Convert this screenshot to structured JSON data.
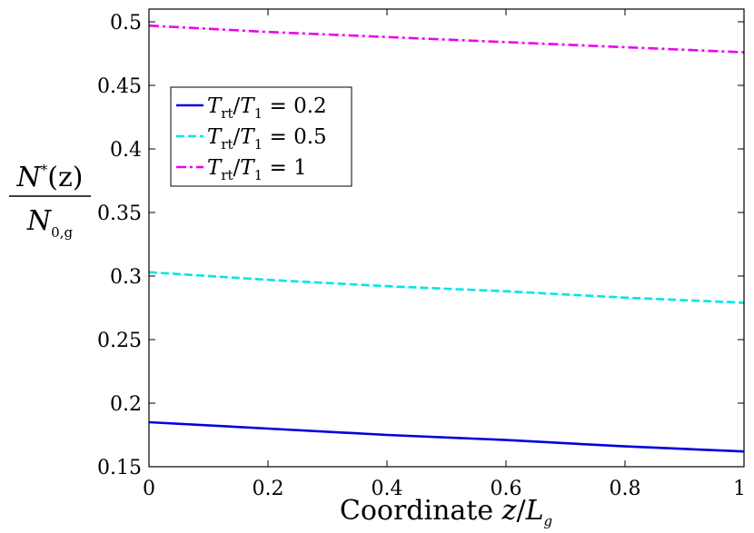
{
  "chart_data": {
    "type": "line",
    "title": "",
    "xlabel": {
      "prefix": "Coordinate ",
      "var": "z",
      "slash": "/",
      "sym": "L",
      "sub": "g"
    },
    "ylabel": {
      "num_sym": "N",
      "num_sup": "*",
      "num_arg": "(z)",
      "den_sym": "N",
      "den_sub": "0,g"
    },
    "xlim": [
      0,
      1
    ],
    "ylim": [
      0.15,
      0.51
    ],
    "xticks": [
      0,
      0.2,
      0.4,
      0.6,
      0.8,
      1
    ],
    "xtick_labels": [
      "0",
      "0.2",
      "0.4",
      "0.6",
      "0.8",
      "1"
    ],
    "yticks": [
      0.15,
      0.2,
      0.25,
      0.3,
      0.35,
      0.4,
      0.45,
      0.5
    ],
    "ytick_labels": [
      "0.15",
      "0.2",
      "0.25",
      "0.3",
      "0.35",
      "0.4",
      "0.45",
      "0.5"
    ],
    "grid": false,
    "legend_position": "upper-left",
    "series": [
      {
        "legend": {
          "sym": "T",
          "sub": "rt",
          "slash": "/",
          "sym2": "T",
          "sub2": "1",
          "rhs": " = 0.2"
        },
        "color": "#0000dd",
        "style": "solid",
        "x": [
          0,
          0.2,
          0.4,
          0.6,
          0.8,
          1
        ],
        "y": [
          0.185,
          0.18,
          0.175,
          0.171,
          0.166,
          0.162
        ]
      },
      {
        "legend": {
          "sym": "T",
          "sub": "rt",
          "slash": "/",
          "sym2": "T",
          "sub2": "1",
          "rhs": " = 0.5"
        },
        "color": "#00e5e5",
        "style": "dashed",
        "x": [
          0,
          0.2,
          0.4,
          0.6,
          0.8,
          1
        ],
        "y": [
          0.303,
          0.297,
          0.292,
          0.288,
          0.283,
          0.279
        ]
      },
      {
        "legend": {
          "sym": "T",
          "sub": "rt",
          "slash": "/",
          "sym2": "T",
          "sub2": "1",
          "rhs": " = 1"
        },
        "color": "#ee00ee",
        "style": "dashdot",
        "x": [
          0,
          0.2,
          0.4,
          0.6,
          0.8,
          1
        ],
        "y": [
          0.497,
          0.492,
          0.488,
          0.484,
          0.48,
          0.476
        ]
      }
    ]
  }
}
